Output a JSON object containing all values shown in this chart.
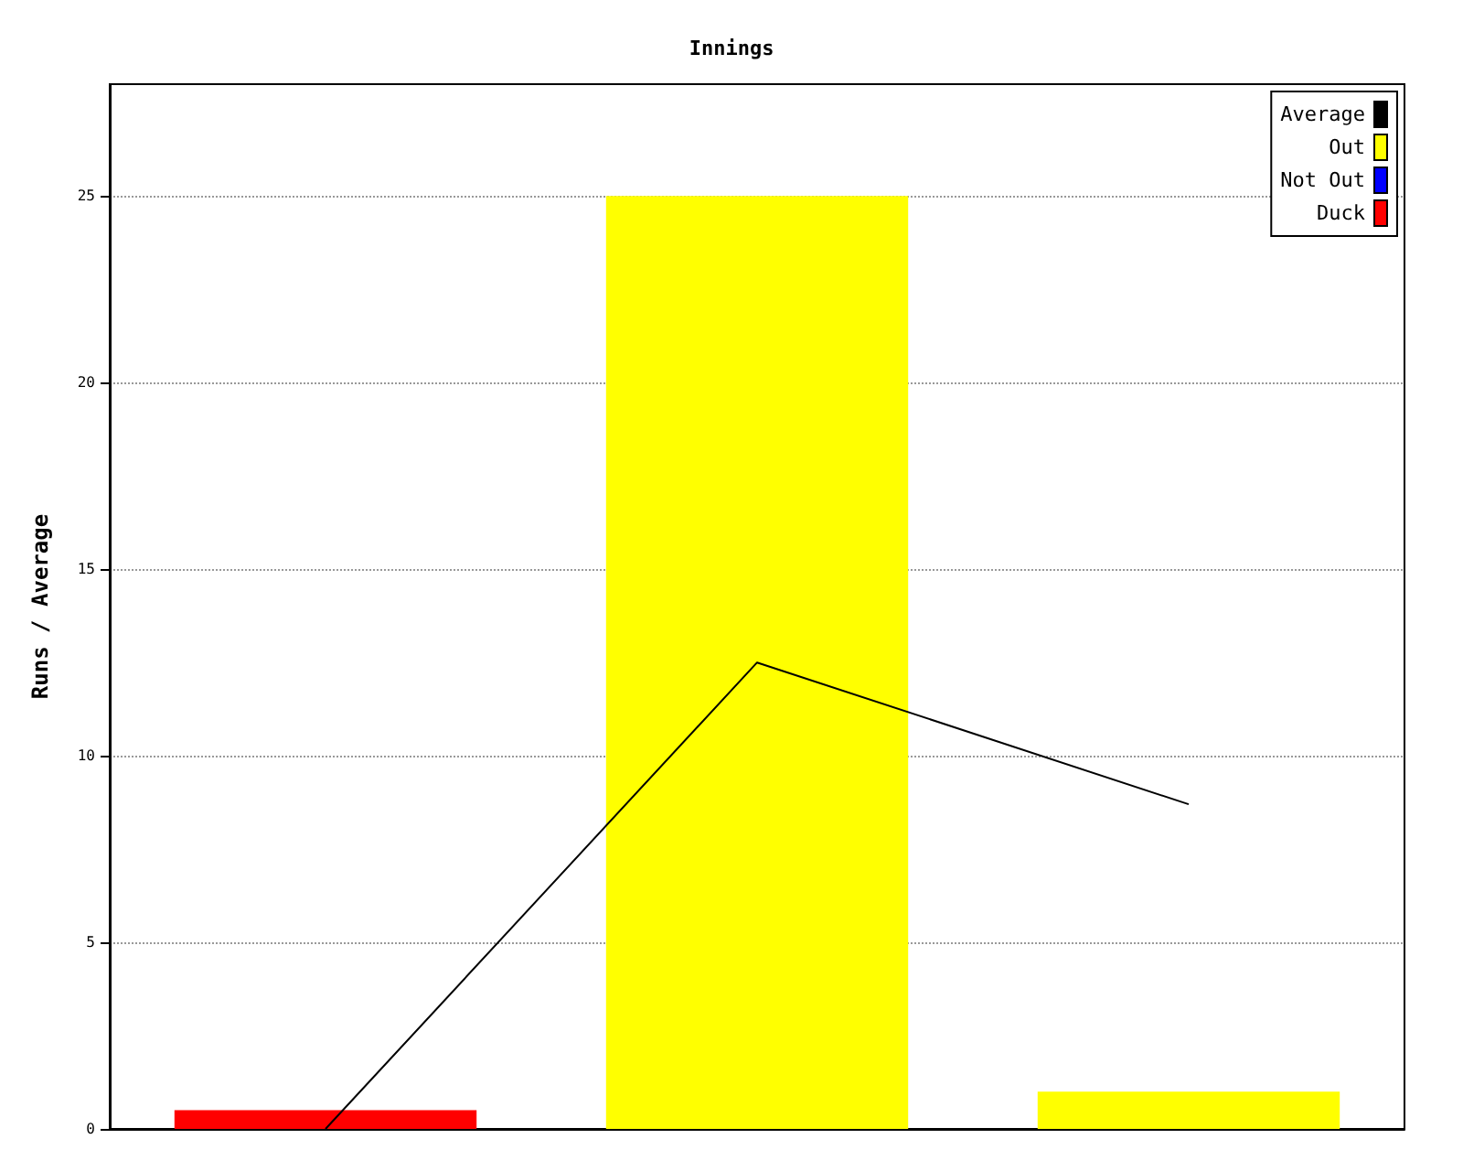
{
  "chart_data": {
    "type": "bar",
    "title": "Innings",
    "ylabel": "Runs / Average",
    "categories": [
      null,
      null,
      null
    ],
    "stacked": true,
    "series": [
      {
        "name": "Average",
        "type": "line",
        "color": "#000000",
        "values": [
          0,
          12.5,
          8.7
        ]
      },
      {
        "name": "Out",
        "color": "#ffff00",
        "values": [
          null,
          25,
          1
        ]
      },
      {
        "name": "Not Out",
        "color": "#0000ff",
        "values": [
          null,
          null,
          null
        ]
      },
      {
        "name": "Duck",
        "color": "#ff0000",
        "values": [
          0.5,
          null,
          null
        ]
      }
    ],
    "ylim": [
      0,
      28
    ],
    "yticks": [
      0,
      5,
      10,
      15,
      20,
      25
    ],
    "grid": "y",
    "legend": "top right",
    "marker": "none"
  }
}
